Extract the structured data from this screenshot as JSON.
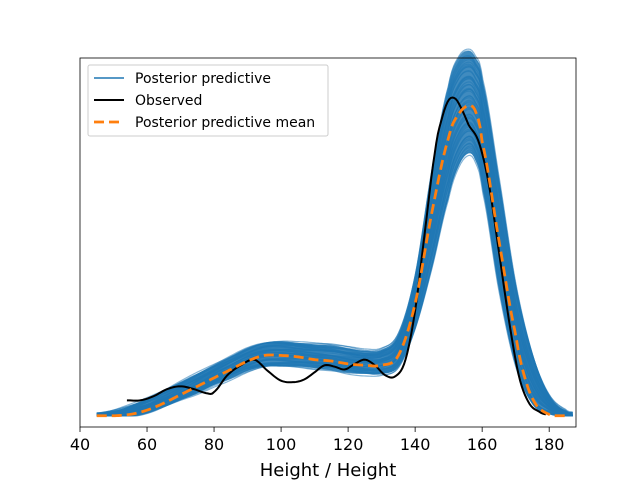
{
  "chart_data": {
    "type": "line",
    "title": "",
    "xlabel": "Height / Height",
    "ylabel": "",
    "xlim": [
      40,
      188
    ],
    "ylim": [
      -0.0008,
      0.0255
    ],
    "x_ticks": [
      40,
      60,
      80,
      100,
      120,
      140,
      160,
      180
    ],
    "y_ticks_visible": false,
    "grid": false,
    "legend_position": "top-left",
    "legend": [
      {
        "label": "Posterior predictive",
        "color": "#1f77b4",
        "style": "solid-thin"
      },
      {
        "label": "Observed",
        "color": "#000000",
        "style": "solid"
      },
      {
        "label": "Posterior predictive mean",
        "color": "#ff7f0e",
        "style": "dashed"
      }
    ],
    "series": [
      {
        "name": "Posterior predictive mean",
        "color": "#ff7f0e",
        "x": [
          45,
          50,
          55,
          60,
          65,
          70,
          75,
          80,
          85,
          90,
          95,
          100,
          105,
          110,
          115,
          120,
          125,
          130,
          135,
          140,
          145,
          150,
          153,
          156,
          158,
          160,
          165,
          170,
          173,
          176,
          180,
          183,
          186
        ],
        "y": [
          0.0,
          0.0,
          0.0001,
          0.0004,
          0.0009,
          0.0015,
          0.0021,
          0.0027,
          0.0033,
          0.0039,
          0.0043,
          0.0043,
          0.0042,
          0.004,
          0.0039,
          0.0037,
          0.0036,
          0.0036,
          0.0043,
          0.008,
          0.0145,
          0.0198,
          0.0215,
          0.0221,
          0.0217,
          0.0195,
          0.0125,
          0.0058,
          0.0025,
          0.0008,
          0.0001,
          0.0,
          0.0
        ]
      },
      {
        "name": "Observed",
        "color": "#000000",
        "x": [
          54,
          58,
          62,
          66,
          70,
          74,
          78,
          80,
          84,
          88,
          92,
          96,
          100,
          104,
          107,
          110,
          113,
          116,
          119,
          122,
          125,
          128,
          131,
          134,
          137,
          140,
          143,
          146,
          148,
          150,
          152,
          154,
          156,
          159,
          162,
          165,
          168,
          171,
          174,
          177,
          179
        ],
        "y": [
          0.0011,
          0.0011,
          0.0014,
          0.0019,
          0.0021,
          0.0019,
          0.0016,
          0.0017,
          0.0029,
          0.0036,
          0.004,
          0.0032,
          0.0025,
          0.0024,
          0.0026,
          0.0031,
          0.0036,
          0.0035,
          0.0033,
          0.0037,
          0.004,
          0.0036,
          0.0029,
          0.0028,
          0.0039,
          0.0075,
          0.0133,
          0.0189,
          0.0212,
          0.0225,
          0.0226,
          0.0218,
          0.0207,
          0.0195,
          0.0165,
          0.0117,
          0.0068,
          0.0028,
          0.0009,
          0.0003,
          0.0001
        ]
      },
      {
        "name": "Posterior predictive",
        "color": "#1f77b4",
        "type": "band",
        "x": [
          45,
          50,
          55,
          60,
          65,
          70,
          75,
          80,
          85,
          90,
          95,
          100,
          105,
          110,
          115,
          120,
          125,
          130,
          135,
          140,
          145,
          150,
          153,
          156,
          158,
          160,
          165,
          170,
          175,
          180,
          185,
          187
        ],
        "y_low": [
          0.0,
          0.0,
          0.0,
          0.0002,
          0.0006,
          0.0011,
          0.0016,
          0.0022,
          0.0027,
          0.0032,
          0.0035,
          0.0035,
          0.0035,
          0.0034,
          0.0033,
          0.0031,
          0.003,
          0.003,
          0.0035,
          0.0062,
          0.0105,
          0.0155,
          0.0178,
          0.0187,
          0.0182,
          0.0162,
          0.009,
          0.0035,
          0.0008,
          0.0001,
          0.0,
          0.0
        ],
        "y_high": [
          0.0001,
          0.0003,
          0.0007,
          0.0012,
          0.0018,
          0.0024,
          0.003,
          0.0036,
          0.0042,
          0.0048,
          0.0052,
          0.0053,
          0.0052,
          0.0051,
          0.005,
          0.0048,
          0.0046,
          0.0047,
          0.0058,
          0.01,
          0.0175,
          0.0235,
          0.0255,
          0.026,
          0.0255,
          0.024,
          0.017,
          0.0095,
          0.0045,
          0.0015,
          0.0003,
          0.0001
        ]
      }
    ]
  }
}
